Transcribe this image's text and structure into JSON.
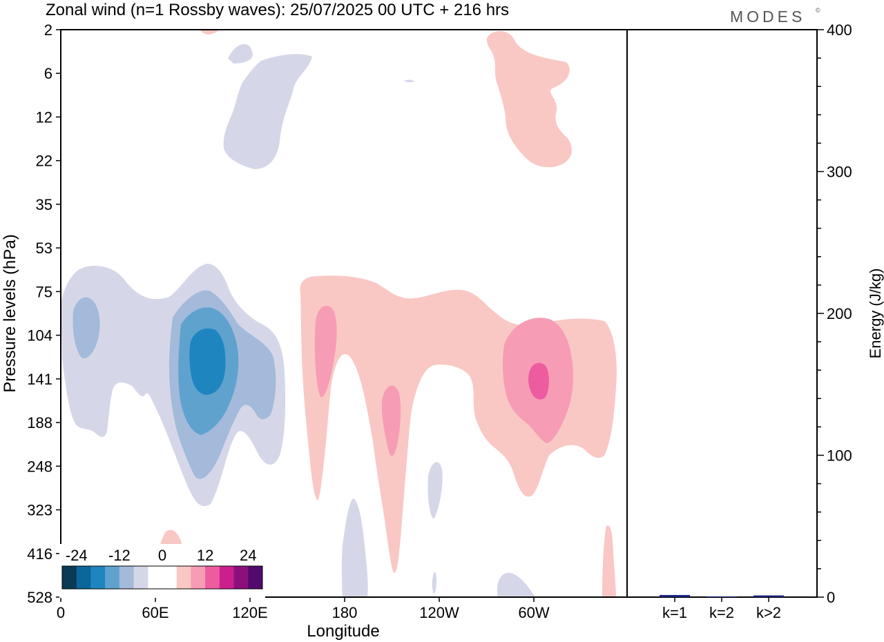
{
  "chart_data": {
    "type": "heatmap",
    "title": "Zonal wind (n=1 Rossby waves):  25/07/2025  00 UTC  + 216 hrs",
    "brand": "MODES",
    "brand_mark": "©",
    "xlabel": "Longitude",
    "ylabel": "Pressure levels (hPa)",
    "x_ticks": [
      "0",
      "60E",
      "120E",
      "180",
      "120W",
      "60W"
    ],
    "y_ticks": [
      "2",
      "6",
      "12",
      "22",
      "35",
      "53",
      "75",
      "104",
      "141",
      "188",
      "248",
      "323",
      "416",
      "528"
    ],
    "colorbar": {
      "tick_labels": [
        "-24",
        "-12",
        "0",
        "12",
        "24"
      ],
      "levels": [
        -30,
        -25,
        -20,
        -15,
        -10,
        -5,
        0,
        5,
        10,
        15,
        20,
        25,
        30
      ],
      "colors": [
        "#0a3a55",
        "#0d6699",
        "#1f85bf",
        "#5fa2ce",
        "#a3bada",
        "#d5d7e8",
        "#ffffff",
        "#ffffff",
        "#f9c8c4",
        "#f79cb5",
        "#ee5ca0",
        "#cb1f8e",
        "#8c0f7c",
        "#520a6e"
      ]
    },
    "energy_panel": {
      "ylabel": "Energy (J/kg)",
      "ylim": [
        0,
        400
      ],
      "y_ticks": [
        "0",
        "100",
        "200",
        "300",
        "400"
      ],
      "categories": [
        "k=1",
        "k=2",
        "k>2"
      ],
      "values": [
        1.5,
        0.5,
        1.2
      ],
      "bar_color": "#1a237e"
    }
  }
}
